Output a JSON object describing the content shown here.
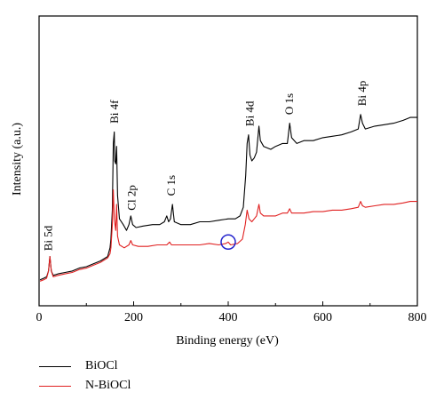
{
  "chart_data": {
    "type": "line",
    "xlabel": "Binding energy (eV)",
    "ylabel": "Intensity (a.u.)",
    "xlim": [
      0,
      800
    ],
    "ylim": [
      0,
      1
    ],
    "x_ticks": [
      0,
      200,
      400,
      600,
      800
    ],
    "y_tick_labels": false,
    "grid": false,
    "legend_placement": "bottom-left, below the plot",
    "series": [
      {
        "name": "BiOCl",
        "color": "#000000",
        "points": [
          [
            2,
            0.09
          ],
          [
            10,
            0.095
          ],
          [
            16,
            0.1
          ],
          [
            20,
            0.12
          ],
          [
            23,
            0.17
          ],
          [
            26,
            0.12
          ],
          [
            30,
            0.105
          ],
          [
            40,
            0.11
          ],
          [
            55,
            0.115
          ],
          [
            70,
            0.12
          ],
          [
            85,
            0.13
          ],
          [
            100,
            0.135
          ],
          [
            115,
            0.145
          ],
          [
            130,
            0.155
          ],
          [
            145,
            0.17
          ],
          [
            150,
            0.2
          ],
          [
            152,
            0.23
          ],
          [
            155,
            0.33
          ],
          [
            157,
            0.56
          ],
          [
            159,
            0.6
          ],
          [
            160,
            0.5
          ],
          [
            162,
            0.49
          ],
          [
            164,
            0.55
          ],
          [
            166,
            0.38
          ],
          [
            170,
            0.3
          ],
          [
            178,
            0.28
          ],
          [
            185,
            0.26
          ],
          [
            190,
            0.28
          ],
          [
            194,
            0.31
          ],
          [
            198,
            0.28
          ],
          [
            205,
            0.27
          ],
          [
            220,
            0.275
          ],
          [
            240,
            0.28
          ],
          [
            255,
            0.28
          ],
          [
            265,
            0.29
          ],
          [
            270,
            0.31
          ],
          [
            274,
            0.29
          ],
          [
            278,
            0.3
          ],
          [
            282,
            0.35
          ],
          [
            286,
            0.29
          ],
          [
            300,
            0.28
          ],
          [
            320,
            0.28
          ],
          [
            340,
            0.29
          ],
          [
            360,
            0.29
          ],
          [
            380,
            0.295
          ],
          [
            400,
            0.3
          ],
          [
            415,
            0.3
          ],
          [
            425,
            0.31
          ],
          [
            432,
            0.34
          ],
          [
            437,
            0.45
          ],
          [
            440,
            0.56
          ],
          [
            443,
            0.59
          ],
          [
            446,
            0.52
          ],
          [
            450,
            0.5
          ],
          [
            455,
            0.51
          ],
          [
            460,
            0.53
          ],
          [
            465,
            0.62
          ],
          [
            468,
            0.57
          ],
          [
            475,
            0.55
          ],
          [
            490,
            0.54
          ],
          [
            500,
            0.55
          ],
          [
            515,
            0.56
          ],
          [
            525,
            0.56
          ],
          [
            530,
            0.63
          ],
          [
            534,
            0.58
          ],
          [
            545,
            0.56
          ],
          [
            560,
            0.57
          ],
          [
            580,
            0.57
          ],
          [
            600,
            0.58
          ],
          [
            620,
            0.585
          ],
          [
            640,
            0.59
          ],
          [
            660,
            0.6
          ],
          [
            675,
            0.61
          ],
          [
            680,
            0.66
          ],
          [
            684,
            0.63
          ],
          [
            690,
            0.61
          ],
          [
            710,
            0.62
          ],
          [
            730,
            0.625
          ],
          [
            750,
            0.63
          ],
          [
            770,
            0.64
          ],
          [
            785,
            0.65
          ],
          [
            800,
            0.65
          ]
        ]
      },
      {
        "name": "N-BiOCl",
        "color": "#e02020",
        "points": [
          [
            2,
            0.085
          ],
          [
            10,
            0.09
          ],
          [
            16,
            0.095
          ],
          [
            20,
            0.12
          ],
          [
            23,
            0.17
          ],
          [
            26,
            0.12
          ],
          [
            30,
            0.1
          ],
          [
            40,
            0.105
          ],
          [
            55,
            0.11
          ],
          [
            70,
            0.115
          ],
          [
            85,
            0.125
          ],
          [
            100,
            0.13
          ],
          [
            115,
            0.14
          ],
          [
            130,
            0.15
          ],
          [
            145,
            0.165
          ],
          [
            150,
            0.18
          ],
          [
            152,
            0.2
          ],
          [
            155,
            0.28
          ],
          [
            157,
            0.4
          ],
          [
            159,
            0.3
          ],
          [
            162,
            0.26
          ],
          [
            164,
            0.35
          ],
          [
            166,
            0.24
          ],
          [
            170,
            0.21
          ],
          [
            180,
            0.2
          ],
          [
            190,
            0.21
          ],
          [
            194,
            0.225
          ],
          [
            198,
            0.21
          ],
          [
            210,
            0.205
          ],
          [
            230,
            0.205
          ],
          [
            250,
            0.21
          ],
          [
            270,
            0.21
          ],
          [
            276,
            0.22
          ],
          [
            280,
            0.21
          ],
          [
            300,
            0.21
          ],
          [
            320,
            0.21
          ],
          [
            340,
            0.21
          ],
          [
            360,
            0.215
          ],
          [
            380,
            0.21
          ],
          [
            395,
            0.215
          ],
          [
            400,
            0.22
          ],
          [
            405,
            0.21
          ],
          [
            420,
            0.215
          ],
          [
            430,
            0.23
          ],
          [
            436,
            0.28
          ],
          [
            440,
            0.33
          ],
          [
            444,
            0.3
          ],
          [
            450,
            0.29
          ],
          [
            455,
            0.3
          ],
          [
            460,
            0.31
          ],
          [
            465,
            0.35
          ],
          [
            468,
            0.32
          ],
          [
            475,
            0.31
          ],
          [
            490,
            0.31
          ],
          [
            500,
            0.31
          ],
          [
            515,
            0.32
          ],
          [
            525,
            0.32
          ],
          [
            530,
            0.335
          ],
          [
            534,
            0.32
          ],
          [
            545,
            0.32
          ],
          [
            560,
            0.32
          ],
          [
            580,
            0.325
          ],
          [
            600,
            0.325
          ],
          [
            620,
            0.33
          ],
          [
            640,
            0.33
          ],
          [
            660,
            0.335
          ],
          [
            675,
            0.34
          ],
          [
            680,
            0.36
          ],
          [
            684,
            0.345
          ],
          [
            690,
            0.34
          ],
          [
            710,
            0.345
          ],
          [
            730,
            0.35
          ],
          [
            750,
            0.35
          ],
          [
            770,
            0.355
          ],
          [
            785,
            0.36
          ],
          [
            800,
            0.36
          ]
        ]
      }
    ],
    "annotations": [
      {
        "text": "Bi 5d",
        "x": 20,
        "y": 0.18
      },
      {
        "text": "Bi 4f",
        "x": 160,
        "y": 0.62
      },
      {
        "text": "Cl 2p",
        "x": 196,
        "y": 0.32
      },
      {
        "text": "C 1s",
        "x": 280,
        "y": 0.37
      },
      {
        "text": "Bi 4d",
        "x": 446,
        "y": 0.61
      },
      {
        "text": "O 1s",
        "x": 530,
        "y": 0.65
      },
      {
        "text": "Bi 4p",
        "x": 684,
        "y": 0.68
      }
    ],
    "highlight_marker": {
      "shape": "circle",
      "color": "#2020cc",
      "x": 400,
      "y": 0.22
    }
  }
}
